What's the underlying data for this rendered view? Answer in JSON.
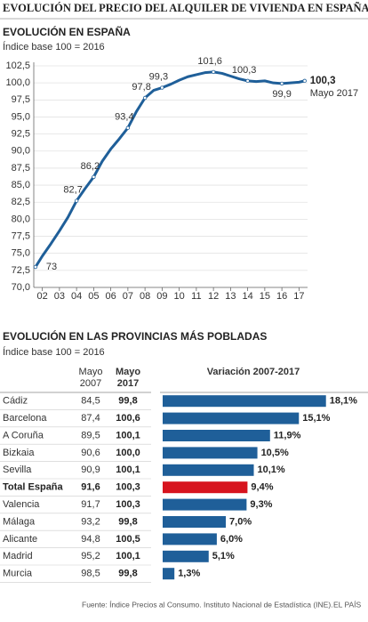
{
  "title": "EVOLUCIÓN DEL PRECIO DEL ALQUILER DE VIVIENDA EN ESPAÑA",
  "chart_data": [
    {
      "type": "line",
      "title": "EVOLUCIÓN EN ESPAÑA",
      "subtitle": "Índice base 100 = 2016",
      "x": [
        1.6,
        2.0,
        2.5,
        3.0,
        3.5,
        4.0,
        4.5,
        5.0,
        5.5,
        6.0,
        6.5,
        7.0,
        7.5,
        8.0,
        8.5,
        9.0,
        9.5,
        10.0,
        10.5,
        11.0,
        11.5,
        12.0,
        12.5,
        13.0,
        13.5,
        14.0,
        14.5,
        15.0,
        15.5,
        16.0,
        16.5,
        17.0,
        17.33
      ],
      "series": [
        {
          "color": "#1f5f99",
          "values": [
            73.0,
            74.6,
            76.4,
            78.3,
            80.3,
            82.7,
            84.5,
            86.2,
            88.5,
            90.3,
            91.8,
            93.4,
            95.8,
            97.8,
            98.9,
            99.3,
            99.8,
            100.4,
            100.9,
            101.2,
            101.5,
            101.6,
            101.4,
            101.0,
            100.6,
            100.3,
            100.2,
            100.3,
            100.0,
            99.9,
            100.0,
            100.1,
            100.3
          ],
          "value_labels": [
            "73",
            null,
            null,
            null,
            null,
            "82,7",
            null,
            "86,2",
            null,
            null,
            null,
            "93,4",
            null,
            "97,8",
            null,
            "99,3",
            null,
            null,
            null,
            null,
            null,
            "101,6",
            null,
            null,
            null,
            "100,3",
            null,
            null,
            null,
            "99,9",
            null,
            null,
            "100,3"
          ]
        }
      ],
      "end_note": "Mayo 2017",
      "xlim": [
        1.5,
        17.5
      ],
      "xticks": [
        {
          "value": 2,
          "label": "02"
        },
        {
          "value": 3,
          "label": "03"
        },
        {
          "value": 4,
          "label": "04"
        },
        {
          "value": 5,
          "label": "05"
        },
        {
          "value": 6,
          "label": "06"
        },
        {
          "value": 7,
          "label": "07"
        },
        {
          "value": 8,
          "label": "08"
        },
        {
          "value": 9,
          "label": "09"
        },
        10,
        11,
        12,
        13,
        14,
        15,
        16,
        17
      ],
      "ylim": [
        70,
        102.5
      ],
      "yticks": [
        {
          "value": 70,
          "label": "70,0"
        },
        {
          "value": 72.5,
          "label": "72,5"
        },
        {
          "value": 75,
          "label": "75,0"
        },
        {
          "value": 77.5,
          "label": "77,5"
        },
        {
          "value": 80,
          "label": "80,0"
        },
        {
          "value": 82.5,
          "label": "82,5"
        },
        {
          "value": 85,
          "label": "85,0"
        },
        {
          "value": 87.5,
          "label": "87,5"
        },
        {
          "value": 90,
          "label": "90,0"
        },
        {
          "value": 92.5,
          "label": "92,5"
        },
        {
          "value": 95,
          "label": "95,0"
        },
        {
          "value": 97.5,
          "label": "97,5"
        },
        {
          "value": 100,
          "label": "100,0"
        },
        {
          "value": 102.5,
          "label": "102,5"
        }
      ],
      "grid": true
    },
    {
      "type": "bar",
      "orientation": "horizontal",
      "title": "EVOLUCIÓN EN LAS PROVINCIAS MÁS POBLADAS",
      "subtitle": "Índice base 100 = 2016",
      "columns": [
        "Mayo 2007",
        "Mayo 2017",
        "Variación 2007-2017"
      ],
      "categories": [
        "Cádiz",
        "Barcelona",
        "A Coruña",
        "Bizkaia",
        "Sevilla",
        "Total España",
        "Valencia",
        "Málaga",
        "Alicante",
        "Madrid",
        "Murcia"
      ],
      "may_2007": [
        "84,5",
        "87,4",
        "89,5",
        "90,6",
        "90,9",
        "91,6",
        "91,7",
        "93,2",
        "94,8",
        "95,2",
        "98,5"
      ],
      "may_2017": [
        "99,8",
        "100,6",
        "100,1",
        "100,0",
        "100,1",
        "100,3",
        "100,3",
        "99,8",
        "100,5",
        "100,1",
        "99,8"
      ],
      "values": [
        18.1,
        15.1,
        11.9,
        10.5,
        10.1,
        9.4,
        9.3,
        7.0,
        6.0,
        5.1,
        1.3
      ],
      "value_labels": [
        "18,1%",
        "15,1%",
        "11,9%",
        "10,5%",
        "10,1%",
        "9,4%",
        "9,3%",
        "7,0%",
        "6,0%",
        "5,1%",
        "1,3%"
      ],
      "colors": [
        "#1f5f99",
        "#1f5f99",
        "#1f5f99",
        "#1f5f99",
        "#1f5f99",
        "#d7141e",
        "#1f5f99",
        "#1f5f99",
        "#1f5f99",
        "#1f5f99",
        "#1f5f99"
      ],
      "xlim": [
        0,
        20
      ]
    }
  ],
  "source": "Fuente: Índice Precios al Consumo. Instituto Nacional de Estadística (INE).",
  "brand": "EL PAÍS"
}
